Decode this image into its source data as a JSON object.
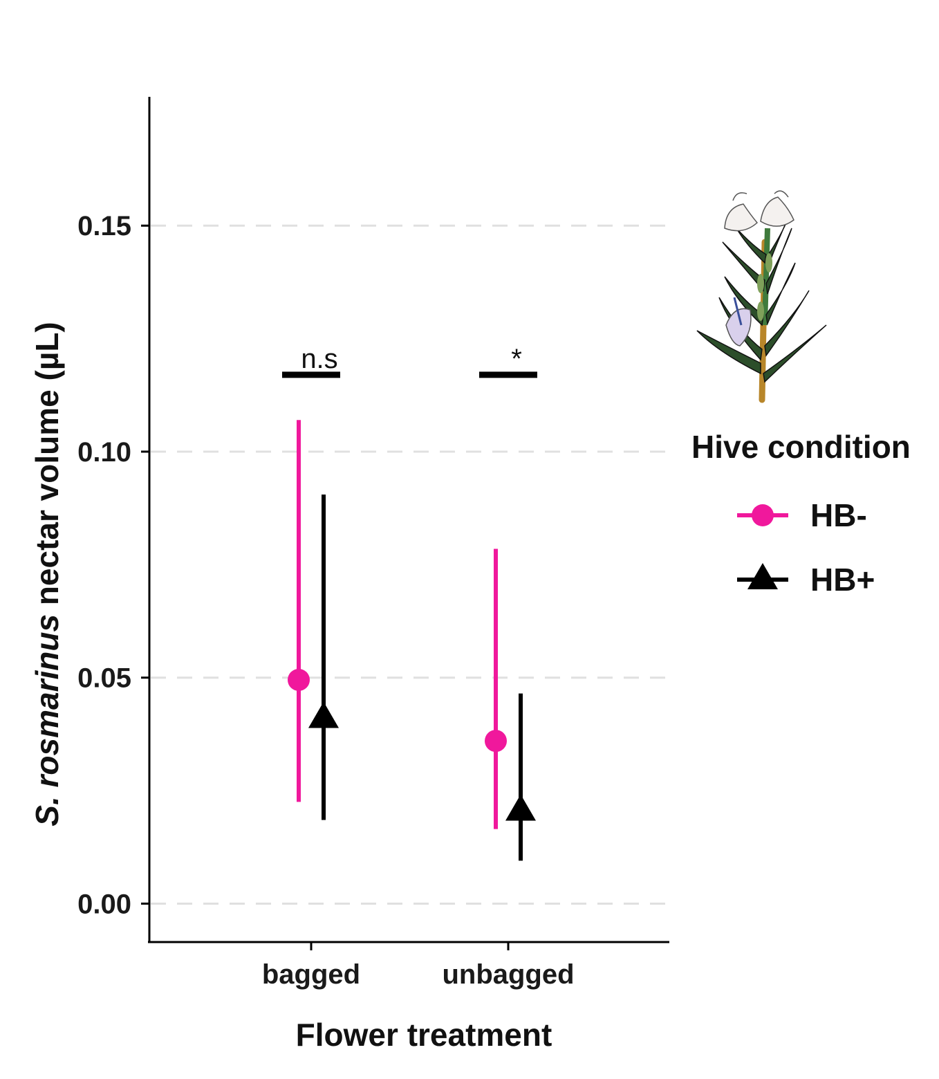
{
  "chart_data": {
    "type": "scatter",
    "xlabel": "Flower treatment",
    "ylabel_italic": "S. rosmarinus",
    "ylabel_rest": " nectar volume (µL)",
    "categories": [
      "bagged",
      "unbagged"
    ],
    "ylim": [
      -0.0085,
      0.1785
    ],
    "yticks": [
      0.0,
      0.05,
      0.1,
      0.15
    ],
    "ytick_labels": [
      "0.00",
      "0.05",
      "0.10",
      "0.15"
    ],
    "grid": "horizontal dashed at y ticks",
    "legend": {
      "title": "Hive condition",
      "placement": "right",
      "entries": [
        "HB-",
        "HB+"
      ]
    },
    "series": [
      {
        "name": "HB-",
        "color": "#f0189c",
        "marker": "circle",
        "points": [
          {
            "category": "bagged",
            "y": 0.0495,
            "ymin": 0.0225,
            "ymax": 0.107
          },
          {
            "category": "unbagged",
            "y": 0.036,
            "ymin": 0.0165,
            "ymax": 0.0785
          }
        ]
      },
      {
        "name": "HB+",
        "color": "#000000",
        "marker": "triangle",
        "points": [
          {
            "category": "bagged",
            "y": 0.041,
            "ymin": 0.0185,
            "ymax": 0.0905
          },
          {
            "category": "unbagged",
            "y": 0.0205,
            "ymin": 0.0095,
            "ymax": 0.0465
          }
        ]
      }
    ],
    "annotations": [
      {
        "category": "bagged",
        "label": "n.s",
        "y": 0.117
      },
      {
        "category": "unbagged",
        "label": "*",
        "y": 0.117
      }
    ],
    "illustration": "rosemary-sprig"
  }
}
